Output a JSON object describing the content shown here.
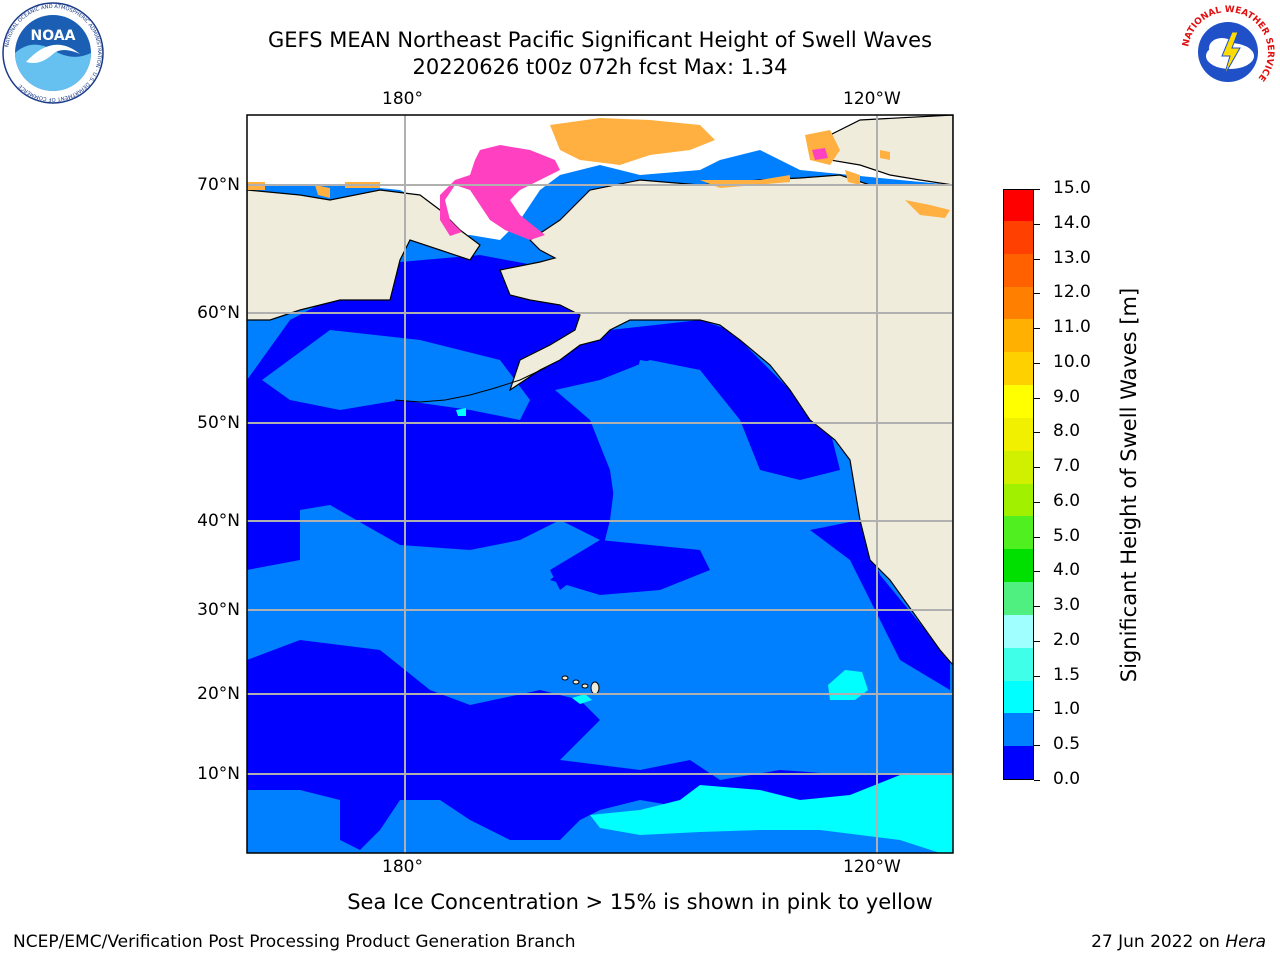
{
  "header": {
    "title_line1": "GEFS MEAN Northeast Pacific Significant Height of Swell Waves",
    "title_line2": "20220626 t00z 072h fcst   Max: 1.34"
  },
  "logos": {
    "left": "NOAA",
    "left_ring_text": "NATIONAL OCEANIC AND ATMOSPHERIC ADMINISTRATION · U.S. DEPARTMENT OF COMMERCE",
    "right_ring_text": "NATIONAL WEATHER SERVICE"
  },
  "map": {
    "top_lon_labels": [
      "180°",
      "120°W"
    ],
    "bottom_lon_labels": [
      "180°",
      "120°W"
    ],
    "lat_labels": [
      "70°N",
      "60°N",
      "50°N",
      "40°N",
      "30°N",
      "20°N",
      "10°N"
    ],
    "colors": {
      "land": "#efecdc",
      "swell_0_05": "#0000ff",
      "swell_05_10": "#0080ff",
      "swell_10_15": "#00ffff",
      "sea_ice_pink": "#ff40c0",
      "sea_ice_orange": "#ffb040",
      "grid": "#b0b0b0"
    }
  },
  "colorbar": {
    "title": "Significant Height of Swell Waves [m]",
    "tick_labels": [
      "15.0",
      "14.0",
      "13.0",
      "12.0",
      "11.0",
      "10.0",
      "9.0",
      "8.0",
      "7.0",
      "6.0",
      "5.0",
      "4.0",
      "3.0",
      "2.0",
      "1.5",
      "1.0",
      "0.5",
      "0.0"
    ],
    "colors_bottom_to_top": [
      "#0000ff",
      "#0080ff",
      "#00ffff",
      "#40ffe8",
      "#a0ffff",
      "#50f080",
      "#00e000",
      "#50f020",
      "#a0f000",
      "#d0f000",
      "#f0f000",
      "#ffff00",
      "#ffd000",
      "#ffb000",
      "#ff8000",
      "#ff6000",
      "#ff4000",
      "#ff0000"
    ]
  },
  "notes": {
    "ice_note": "Sea Ice Concentration > 15% is shown in pink to yellow",
    "footer_left": "NCEP/EMC/Verification Post Processing Product Generation Branch",
    "footer_date": "27 Jun 2022 on",
    "footer_host": "Hera"
  }
}
